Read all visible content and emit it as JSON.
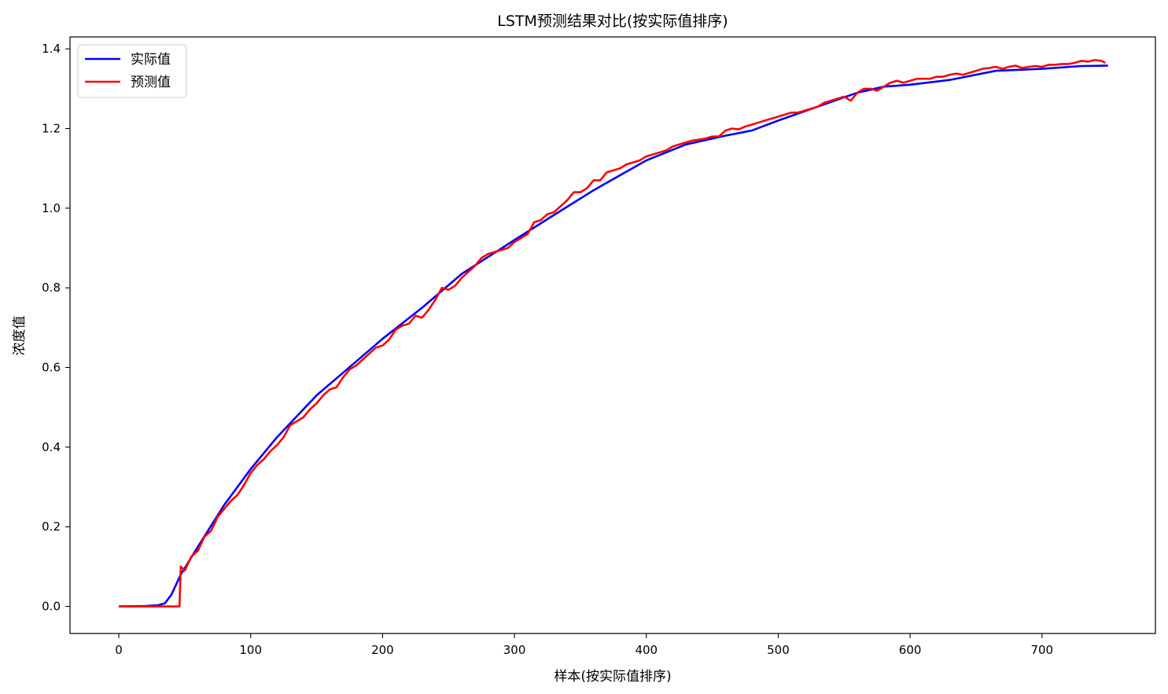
{
  "chart_data": {
    "type": "line",
    "title": "LSTM预测结果对比(按实际值排序)",
    "xlabel": "样本(按实际值排序)",
    "ylabel": "浓度值",
    "xlim": [
      -37,
      786
    ],
    "ylim": [
      -0.068,
      1.43
    ],
    "xticks": [
      0,
      100,
      200,
      300,
      400,
      500,
      600,
      700
    ],
    "xtick_labels": [
      "0",
      "100",
      "200",
      "300",
      "400",
      "500",
      "600",
      "700"
    ],
    "yticks": [
      0.0,
      0.2,
      0.4,
      0.6,
      0.8,
      1.0,
      1.2,
      1.4
    ],
    "ytick_labels": [
      "0.0",
      "0.2",
      "0.4",
      "0.6",
      "0.8",
      "1.0",
      "1.2",
      "1.4"
    ],
    "grid": false,
    "legend_position": "upper-left",
    "series": [
      {
        "name": "实际值",
        "color": "#0000ff",
        "x": [
          0,
          20,
          30,
          35,
          40,
          47,
          60,
          80,
          100,
          120,
          150,
          180,
          200,
          230,
          260,
          300,
          330,
          360,
          400,
          430,
          460,
          480,
          500,
          530,
          560,
          580,
          600,
          630,
          665,
          700,
          730,
          750
        ],
        "y": [
          0.0,
          0.001,
          0.003,
          0.008,
          0.03,
          0.08,
          0.15,
          0.255,
          0.345,
          0.425,
          0.53,
          0.615,
          0.672,
          0.75,
          0.835,
          0.92,
          0.983,
          1.045,
          1.12,
          1.16,
          1.182,
          1.195,
          1.22,
          1.255,
          1.29,
          1.305,
          1.31,
          1.322,
          1.345,
          1.35,
          1.357,
          1.358
        ]
      },
      {
        "name": "预测值",
        "color": "#ff0000",
        "x": [
          0,
          20,
          40,
          46,
          47,
          50,
          55,
          60,
          65,
          70,
          75,
          80,
          85,
          90,
          95,
          100,
          105,
          110,
          115,
          120,
          125,
          130,
          135,
          140,
          145,
          150,
          155,
          160,
          165,
          170,
          175,
          180,
          185,
          190,
          195,
          200,
          205,
          210,
          215,
          220,
          225,
          230,
          235,
          240,
          245,
          250,
          255,
          260,
          265,
          270,
          275,
          280,
          285,
          290,
          295,
          300,
          305,
          310,
          315,
          320,
          325,
          330,
          335,
          340,
          345,
          350,
          355,
          360,
          365,
          370,
          375,
          380,
          385,
          390,
          395,
          400,
          405,
          410,
          415,
          420,
          425,
          430,
          435,
          440,
          445,
          450,
          455,
          460,
          465,
          470,
          475,
          480,
          485,
          490,
          495,
          500,
          505,
          510,
          515,
          520,
          525,
          530,
          535,
          540,
          545,
          550,
          555,
          560,
          565,
          570,
          575,
          580,
          585,
          590,
          595,
          600,
          605,
          610,
          615,
          620,
          625,
          630,
          635,
          640,
          645,
          650,
          655,
          660,
          665,
          670,
          675,
          680,
          685,
          690,
          695,
          700,
          705,
          710,
          715,
          720,
          725,
          730,
          735,
          740,
          745,
          748
        ],
        "y": [
          0.0,
          0.0,
          0.0,
          0.0,
          0.1,
          0.09,
          0.125,
          0.14,
          0.175,
          0.19,
          0.225,
          0.245,
          0.265,
          0.28,
          0.305,
          0.335,
          0.355,
          0.37,
          0.39,
          0.405,
          0.425,
          0.455,
          0.465,
          0.475,
          0.495,
          0.51,
          0.53,
          0.545,
          0.55,
          0.575,
          0.595,
          0.605,
          0.62,
          0.635,
          0.65,
          0.655,
          0.67,
          0.695,
          0.705,
          0.71,
          0.73,
          0.725,
          0.745,
          0.77,
          0.8,
          0.795,
          0.805,
          0.825,
          0.84,
          0.855,
          0.875,
          0.885,
          0.89,
          0.895,
          0.9,
          0.915,
          0.925,
          0.935,
          0.965,
          0.97,
          0.985,
          0.99,
          1.005,
          1.02,
          1.04,
          1.04,
          1.05,
          1.07,
          1.07,
          1.09,
          1.095,
          1.1,
          1.11,
          1.115,
          1.12,
          1.13,
          1.135,
          1.14,
          1.145,
          1.155,
          1.16,
          1.165,
          1.17,
          1.172,
          1.175,
          1.18,
          1.18,
          1.195,
          1.2,
          1.198,
          1.205,
          1.21,
          1.215,
          1.22,
          1.225,
          1.23,
          1.235,
          1.24,
          1.24,
          1.245,
          1.25,
          1.255,
          1.265,
          1.27,
          1.275,
          1.28,
          1.27,
          1.29,
          1.3,
          1.3,
          1.295,
          1.305,
          1.315,
          1.32,
          1.315,
          1.32,
          1.325,
          1.325,
          1.325,
          1.33,
          1.33,
          1.335,
          1.338,
          1.335,
          1.34,
          1.345,
          1.35,
          1.352,
          1.355,
          1.35,
          1.355,
          1.358,
          1.352,
          1.355,
          1.357,
          1.355,
          1.36,
          1.36,
          1.362,
          1.362,
          1.365,
          1.37,
          1.368,
          1.372,
          1.37,
          1.365
        ]
      }
    ]
  }
}
